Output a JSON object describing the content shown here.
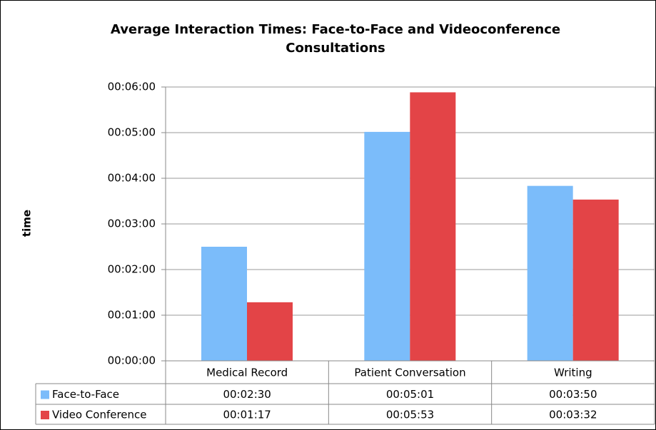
{
  "chart_data": {
    "type": "bar",
    "title": "Average Interaction Times: Face-to-Face and Videoconference Consultations",
    "ylabel": "time",
    "categories": [
      "Medical Record",
      "Patient Conversation",
      "Writing"
    ],
    "series": [
      {
        "name": "Face-to-Face",
        "color": "#7bbcfa",
        "values": [
          150,
          301,
          230
        ],
        "value_labels": [
          "00:02:30",
          "00:05:01",
          "00:03:50"
        ]
      },
      {
        "name": "Video Conference",
        "color": "#e34447",
        "values": [
          77,
          353,
          212
        ],
        "value_labels": [
          "00:01:17",
          "00:05:53",
          "00:03:32"
        ]
      }
    ],
    "ylim": [
      0,
      360
    ],
    "yticks": [
      {
        "value": 0,
        "label": "00:00:00"
      },
      {
        "value": 60,
        "label": "00:01:00"
      },
      {
        "value": 120,
        "label": "00:02:00"
      },
      {
        "value": 180,
        "label": "00:03:00"
      },
      {
        "value": 240,
        "label": "00:04:00"
      },
      {
        "value": 300,
        "label": "00:05:00"
      },
      {
        "value": 360,
        "label": "00:06:00"
      }
    ],
    "grid": true,
    "legend": "table"
  }
}
